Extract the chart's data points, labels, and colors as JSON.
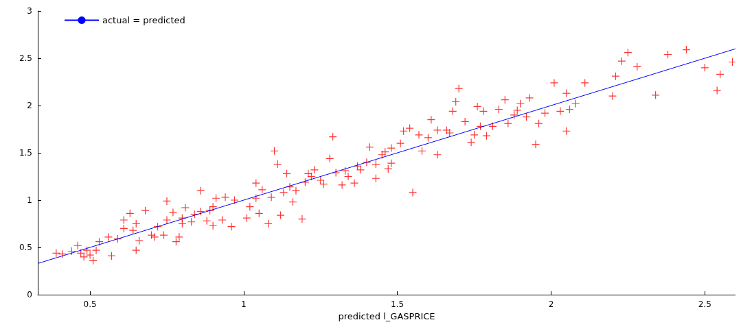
{
  "chart_data": {
    "type": "scatter",
    "xlabel": "predicted l_GASPRICE",
    "xlim": [
      0.33,
      2.6
    ],
    "xticks": [
      0.5,
      1,
      1.5,
      2,
      2.5
    ],
    "ylim": [
      0,
      3
    ],
    "yticks": [
      0,
      0.5,
      1,
      1.5,
      2,
      2.5,
      3
    ],
    "grid": false,
    "legend": "top left",
    "marker": "cross",
    "series": [
      {
        "color": "#ff0000",
        "x": [
          0.39,
          0.41,
          0.44,
          0.46,
          0.47,
          0.48,
          0.49,
          0.5,
          0.51,
          0.52,
          0.53,
          0.56,
          0.57,
          0.59,
          0.61,
          0.61,
          0.63,
          0.64,
          0.65,
          0.65,
          0.66,
          0.68,
          0.7,
          0.71,
          0.72,
          0.74,
          0.75,
          0.75,
          0.77,
          0.78,
          0.79,
          0.8,
          0.8,
          0.81,
          0.83,
          0.84,
          0.86,
          0.86,
          0.88,
          0.89,
          0.9,
          0.9,
          0.91,
          0.93,
          0.94,
          0.96,
          0.97,
          1.01,
          1.02,
          1.04,
          1.04,
          1.05,
          1.06,
          1.08,
          1.09,
          1.1,
          1.11,
          1.12,
          1.13,
          1.14,
          1.15,
          1.16,
          1.17,
          1.19,
          1.2,
          1.21,
          1.22,
          1.23,
          1.25,
          1.26,
          1.28,
          1.29,
          1.3,
          1.32,
          1.33,
          1.34,
          1.36,
          1.37,
          1.38,
          1.4,
          1.41,
          1.43,
          1.43,
          1.45,
          1.46,
          1.47,
          1.48,
          1.48,
          1.51,
          1.52,
          1.54,
          1.55,
          1.57,
          1.58,
          1.6,
          1.61,
          1.63,
          1.63,
          1.66,
          1.67,
          1.68,
          1.69,
          1.7,
          1.72,
          1.74,
          1.75,
          1.76,
          1.77,
          1.78,
          1.79,
          1.81,
          1.83,
          1.85,
          1.86,
          1.88,
          1.89,
          1.9,
          1.92,
          1.93,
          1.95,
          1.96,
          1.98,
          2.01,
          2.03,
          2.05,
          2.05,
          2.06,
          2.08,
          2.11,
          2.2,
          2.21,
          2.23,
          2.25,
          2.28,
          2.34,
          2.38,
          2.44,
          2.5,
          2.54,
          2.55,
          2.59
        ],
        "values": [
          0.44,
          0.43,
          0.46,
          0.52,
          0.44,
          0.4,
          0.47,
          0.42,
          0.36,
          0.47,
          0.56,
          0.61,
          0.41,
          0.59,
          0.79,
          0.7,
          0.86,
          0.68,
          0.75,
          0.47,
          0.57,
          0.89,
          0.63,
          0.61,
          0.72,
          0.63,
          0.99,
          0.79,
          0.87,
          0.56,
          0.61,
          0.81,
          0.75,
          0.92,
          0.77,
          0.85,
          1.1,
          0.88,
          0.78,
          0.89,
          0.73,
          0.93,
          1.02,
          0.79,
          1.03,
          0.72,
          1.0,
          0.81,
          0.93,
          1.02,
          1.18,
          0.86,
          1.11,
          0.75,
          1.03,
          1.52,
          1.38,
          0.84,
          1.08,
          1.28,
          1.14,
          0.98,
          1.1,
          0.8,
          1.19,
          1.28,
          1.25,
          1.32,
          1.21,
          1.17,
          1.44,
          1.67,
          1.29,
          1.16,
          1.31,
          1.25,
          1.18,
          1.36,
          1.32,
          1.4,
          1.56,
          1.38,
          1.23,
          1.48,
          1.51,
          1.33,
          1.39,
          1.55,
          1.6,
          1.73,
          1.76,
          1.08,
          1.69,
          1.52,
          1.66,
          1.85,
          1.48,
          1.74,
          1.74,
          1.71,
          1.94,
          2.04,
          2.18,
          1.83,
          1.61,
          1.69,
          1.99,
          1.78,
          1.94,
          1.68,
          1.78,
          1.96,
          2.06,
          1.81,
          1.9,
          1.95,
          2.02,
          1.88,
          2.08,
          1.59,
          1.81,
          1.92,
          2.24,
          1.94,
          1.73,
          2.13,
          1.96,
          2.02,
          2.24,
          2.1,
          2.31,
          2.47,
          2.56,
          2.41,
          2.11,
          2.54,
          2.59,
          2.4,
          2.16,
          2.33,
          2.46
        ]
      },
      {
        "type": "line",
        "name": "actual = predicted",
        "color": "#0000ff",
        "marker": "none",
        "x": [
          0.33,
          2.6
        ],
        "values": [
          0.33,
          2.6
        ]
      }
    ]
  }
}
